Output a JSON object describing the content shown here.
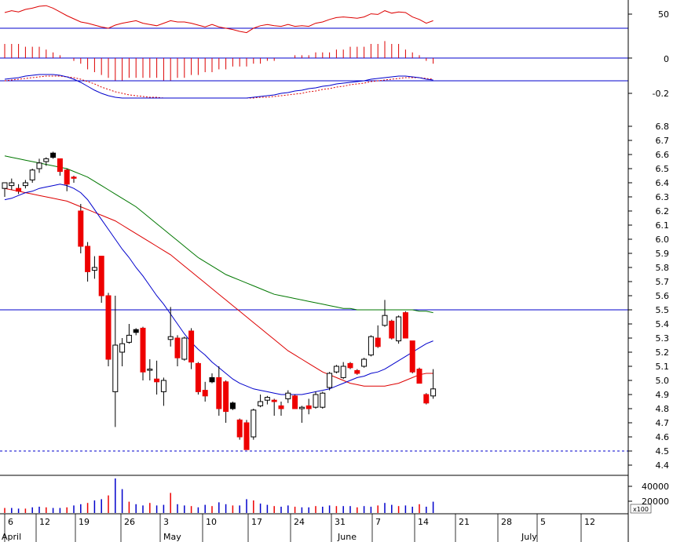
{
  "chart_data": {
    "type": "candlestick",
    "price_axis": {
      "ylim": [
        4.4,
        6.8
      ],
      "tick_labels": [
        "6.8",
        "6.7",
        "6.6",
        "6.5",
        "6.4",
        "6.3",
        "6.2",
        "6.1",
        "6.0",
        "5.9",
        "5.8",
        "5.7",
        "5.6",
        "5.5",
        "5.4",
        "5.3",
        "5.2",
        "5.1",
        "5.0",
        "4.9",
        "4.8",
        "4.7",
        "4.6",
        "4.5",
        "4.4"
      ]
    },
    "rsi_axis": {
      "tick_labels": [
        "50"
      ]
    },
    "macd_hist_axis": {
      "tick_labels": [
        "0"
      ]
    },
    "macd_axis": {
      "tick_labels": [
        "-0.2"
      ]
    },
    "volume_axis": {
      "tick_labels": [
        "40000",
        "20000"
      ],
      "unit_label": "x100"
    },
    "x_axis": {
      "day_labels": [
        "6",
        "12",
        "19",
        "26",
        "3",
        "10",
        "17",
        "24",
        "31",
        "7",
        "14",
        "21",
        "28",
        "5",
        "12"
      ],
      "month_labels": [
        "April",
        "May",
        "June",
        "July"
      ]
    },
    "horizontal_lines": [
      {
        "panel": "price",
        "value": 5.5,
        "style": "solid",
        "color": "#0000cc"
      },
      {
        "panel": "price",
        "value": 4.5,
        "style": "dashed",
        "color": "#0000cc"
      }
    ],
    "candles": [
      {
        "o": 6.36,
        "h": 6.4,
        "l": 6.3,
        "c": 6.4,
        "up": true
      },
      {
        "o": 6.38,
        "h": 6.43,
        "l": 6.35,
        "c": 6.4,
        "up": true
      },
      {
        "o": 6.36,
        "h": 6.39,
        "l": 6.32,
        "c": 6.34,
        "up": false
      },
      {
        "o": 6.38,
        "h": 6.42,
        "l": 6.36,
        "c": 6.4,
        "up": true
      },
      {
        "o": 6.42,
        "h": 6.5,
        "l": 6.4,
        "c": 6.49,
        "up": true
      },
      {
        "o": 6.5,
        "h": 6.57,
        "l": 6.47,
        "c": 6.54,
        "up": true
      },
      {
        "o": 6.55,
        "h": 6.58,
        "l": 6.52,
        "c": 6.57,
        "up": true
      },
      {
        "o": 6.61,
        "h": 6.62,
        "l": 6.57,
        "c": 6.58,
        "up": false
      },
      {
        "o": 6.57,
        "h": 6.57,
        "l": 6.45,
        "c": 6.48,
        "up": false
      },
      {
        "o": 6.49,
        "h": 6.5,
        "l": 6.34,
        "c": 6.39,
        "up": false
      },
      {
        "o": 6.44,
        "h": 6.45,
        "l": 6.4,
        "c": 6.44,
        "up": false
      },
      {
        "o": 6.2,
        "h": 6.25,
        "l": 5.9,
        "c": 5.95,
        "up": false
      },
      {
        "o": 5.95,
        "h": 5.98,
        "l": 5.7,
        "c": 5.77,
        "up": false
      },
      {
        "o": 5.78,
        "h": 5.88,
        "l": 5.72,
        "c": 5.8,
        "up": true
      },
      {
        "o": 5.88,
        "h": 5.88,
        "l": 5.55,
        "c": 5.6,
        "up": false
      },
      {
        "o": 5.6,
        "h": 5.62,
        "l": 5.1,
        "c": 5.15,
        "up": false
      },
      {
        "o": 4.92,
        "h": 5.6,
        "l": 4.67,
        "c": 5.25,
        "up": true
      },
      {
        "o": 5.2,
        "h": 5.3,
        "l": 5.1,
        "c": 5.26,
        "up": true
      },
      {
        "o": 5.27,
        "h": 5.4,
        "l": 5.26,
        "c": 5.32,
        "up": true
      },
      {
        "o": 5.36,
        "h": 5.37,
        "l": 5.32,
        "c": 5.34,
        "up": false
      },
      {
        "o": 5.37,
        "h": 5.38,
        "l": 5.0,
        "c": 5.06,
        "up": false
      },
      {
        "o": 5.08,
        "h": 5.15,
        "l": 5.0,
        "c": 5.08,
        "up": true
      },
      {
        "o": 5.01,
        "h": 5.14,
        "l": 4.9,
        "c": 4.99,
        "up": false
      },
      {
        "o": 4.92,
        "h": 5.02,
        "l": 4.82,
        "c": 5.0,
        "up": true
      },
      {
        "o": 5.29,
        "h": 5.52,
        "l": 5.24,
        "c": 5.31,
        "up": true
      },
      {
        "o": 5.3,
        "h": 5.32,
        "l": 5.1,
        "c": 5.16,
        "up": false
      },
      {
        "o": 5.15,
        "h": 5.31,
        "l": 5.14,
        "c": 5.3,
        "up": true
      },
      {
        "o": 5.35,
        "h": 5.37,
        "l": 5.08,
        "c": 5.13,
        "up": false
      },
      {
        "o": 5.12,
        "h": 5.13,
        "l": 4.9,
        "c": 4.92,
        "up": false
      },
      {
        "o": 4.93,
        "h": 4.99,
        "l": 4.85,
        "c": 4.89,
        "up": false
      },
      {
        "o": 5.02,
        "h": 5.05,
        "l": 4.98,
        "c": 4.99,
        "up": false
      },
      {
        "o": 5.02,
        "h": 5.1,
        "l": 4.75,
        "c": 4.8,
        "up": false
      },
      {
        "o": 4.99,
        "h": 5.0,
        "l": 4.7,
        "c": 4.78,
        "up": false
      },
      {
        "o": 4.84,
        "h": 4.85,
        "l": 4.79,
        "c": 4.8,
        "up": false
      },
      {
        "o": 4.72,
        "h": 4.73,
        "l": 4.58,
        "c": 4.6,
        "up": false
      },
      {
        "o": 4.7,
        "h": 4.72,
        "l": 4.51,
        "c": 4.51,
        "up": false
      },
      {
        "o": 4.6,
        "h": 4.8,
        "l": 4.58,
        "c": 4.79,
        "up": true
      },
      {
        "o": 4.82,
        "h": 4.9,
        "l": 4.81,
        "c": 4.85,
        "up": true
      },
      {
        "o": 4.86,
        "h": 4.89,
        "l": 4.83,
        "c": 4.88,
        "up": true
      },
      {
        "o": 4.86,
        "h": 4.87,
        "l": 4.75,
        "c": 4.85,
        "up": false
      },
      {
        "o": 4.82,
        "h": 4.85,
        "l": 4.75,
        "c": 4.8,
        "up": false
      },
      {
        "o": 4.87,
        "h": 4.93,
        "l": 4.84,
        "c": 4.91,
        "up": true
      },
      {
        "o": 4.89,
        "h": 4.9,
        "l": 4.8,
        "c": 4.8,
        "up": false
      },
      {
        "o": 4.8,
        "h": 4.82,
        "l": 4.7,
        "c": 4.81,
        "up": true
      },
      {
        "o": 4.82,
        "h": 4.87,
        "l": 4.76,
        "c": 4.8,
        "up": false
      },
      {
        "o": 4.81,
        "h": 4.92,
        "l": 4.8,
        "c": 4.9,
        "up": true
      },
      {
        "o": 4.81,
        "h": 4.92,
        "l": 4.8,
        "c": 4.91,
        "up": true
      },
      {
        "o": 4.95,
        "h": 5.06,
        "l": 4.93,
        "c": 5.05,
        "up": true
      },
      {
        "o": 5.06,
        "h": 5.11,
        "l": 5.05,
        "c": 5.1,
        "up": true
      },
      {
        "o": 5.02,
        "h": 5.13,
        "l": 5.01,
        "c": 5.1,
        "up": true
      },
      {
        "o": 5.12,
        "h": 5.13,
        "l": 5.08,
        "c": 5.09,
        "up": false
      },
      {
        "o": 5.07,
        "h": 5.08,
        "l": 5.04,
        "c": 5.05,
        "up": false
      },
      {
        "o": 5.1,
        "h": 5.16,
        "l": 5.09,
        "c": 5.15,
        "up": true
      },
      {
        "o": 5.18,
        "h": 5.32,
        "l": 5.17,
        "c": 5.31,
        "up": true
      },
      {
        "o": 5.3,
        "h": 5.39,
        "l": 5.23,
        "c": 5.24,
        "up": false
      },
      {
        "o": 5.39,
        "h": 5.57,
        "l": 5.38,
        "c": 5.46,
        "up": true
      },
      {
        "o": 5.42,
        "h": 5.43,
        "l": 5.29,
        "c": 5.3,
        "up": false
      },
      {
        "o": 5.28,
        "h": 5.46,
        "l": 5.26,
        "c": 5.45,
        "up": true
      },
      {
        "o": 5.48,
        "h": 5.49,
        "l": 5.3,
        "c": 5.3,
        "up": false
      },
      {
        "o": 5.28,
        "h": 5.28,
        "l": 5.05,
        "c": 5.06,
        "up": false
      },
      {
        "o": 5.08,
        "h": 5.09,
        "l": 4.98,
        "c": 4.98,
        "up": false
      },
      {
        "o": 4.9,
        "h": 4.91,
        "l": 4.83,
        "c": 4.84,
        "up": false
      },
      {
        "o": 4.89,
        "h": 5.08,
        "l": 4.87,
        "c": 4.94,
        "up": true
      }
    ],
    "ma_short_blue": [
      6.28,
      6.29,
      6.31,
      6.33,
      6.34,
      6.36,
      6.37,
      6.38,
      6.39,
      6.38,
      6.36,
      6.33,
      6.28,
      6.21,
      6.14,
      6.07,
      6.0,
      5.93,
      5.87,
      5.8,
      5.74,
      5.67,
      5.6,
      5.54,
      5.47,
      5.4,
      5.33,
      5.27,
      5.22,
      5.18,
      5.13,
      5.09,
      5.05,
      5.01,
      4.98,
      4.96,
      4.94,
      4.93,
      4.92,
      4.91,
      4.9,
      4.9,
      4.9,
      4.9,
      4.91,
      4.92,
      4.93,
      4.94,
      4.96,
      4.98,
      5.0,
      5.02,
      5.03,
      5.05,
      5.06,
      5.08,
      5.11,
      5.14,
      5.17,
      5.2,
      5.23,
      5.26,
      5.28
    ],
    "ma_mid_red": [
      6.36,
      6.35,
      6.34,
      6.33,
      6.32,
      6.31,
      6.3,
      6.29,
      6.28,
      6.27,
      6.25,
      6.23,
      6.21,
      6.19,
      6.17,
      6.15,
      6.13,
      6.1,
      6.07,
      6.04,
      6.01,
      5.98,
      5.95,
      5.92,
      5.89,
      5.85,
      5.81,
      5.77,
      5.73,
      5.69,
      5.65,
      5.61,
      5.57,
      5.53,
      5.49,
      5.45,
      5.41,
      5.37,
      5.33,
      5.29,
      5.25,
      5.21,
      5.18,
      5.15,
      5.12,
      5.09,
      5.06,
      5.04,
      5.02,
      5.0,
      4.98,
      4.97,
      4.96,
      4.96,
      4.96,
      4.96,
      4.97,
      4.98,
      5.0,
      5.02,
      5.04,
      5.05,
      5.05
    ],
    "ma_long_green": [
      6.59,
      6.58,
      6.57,
      6.56,
      6.55,
      6.54,
      6.53,
      6.52,
      6.51,
      6.5,
      6.48,
      6.46,
      6.44,
      6.41,
      6.38,
      6.35,
      6.32,
      6.29,
      6.26,
      6.23,
      6.19,
      6.15,
      6.11,
      6.07,
      6.03,
      5.99,
      5.95,
      5.91,
      5.87,
      5.84,
      5.81,
      5.78,
      5.75,
      5.73,
      5.71,
      5.69,
      5.67,
      5.65,
      5.63,
      5.61,
      5.6,
      5.59,
      5.58,
      5.57,
      5.56,
      5.55,
      5.54,
      5.53,
      5.52,
      5.51,
      5.51,
      5.5,
      5.5,
      5.5,
      5.5,
      5.5,
      5.5,
      5.5,
      5.5,
      5.5,
      5.49,
      5.49,
      5.48
    ],
    "rsi": [
      55,
      58,
      56,
      60,
      62,
      65,
      66,
      62,
      56,
      50,
      45,
      40,
      38,
      35,
      32,
      30,
      35,
      38,
      40,
      42,
      38,
      36,
      34,
      38,
      42,
      40,
      40,
      38,
      35,
      32,
      36,
      32,
      30,
      28,
      25,
      23,
      30,
      34,
      36,
      34,
      33,
      36,
      33,
      34,
      33,
      38,
      40,
      44,
      47,
      48,
      47,
      46,
      48,
      53,
      52,
      58,
      54,
      56,
      55,
      48,
      44,
      38,
      42
    ],
    "macd_hist": [
      0.5,
      0.5,
      0.5,
      0.4,
      0.4,
      0.4,
      0.3,
      0.2,
      0.1,
      0.0,
      -0.1,
      -0.2,
      -0.4,
      -0.5,
      -0.6,
      -0.7,
      -0.8,
      -0.8,
      -0.7,
      -0.7,
      -0.7,
      -0.7,
      -0.7,
      -0.8,
      -0.8,
      -0.7,
      -0.7,
      -0.6,
      -0.6,
      -0.5,
      -0.5,
      -0.4,
      -0.4,
      -0.3,
      -0.3,
      -0.3,
      -0.2,
      -0.2,
      -0.1,
      -0.1,
      0.0,
      0.0,
      0.1,
      0.1,
      0.1,
      0.2,
      0.2,
      0.2,
      0.3,
      0.3,
      0.4,
      0.4,
      0.4,
      0.5,
      0.5,
      0.6,
      0.5,
      0.5,
      0.3,
      0.2,
      0.1,
      -0.1,
      -0.2
    ],
    "macd_line": [
      0.02,
      0.03,
      0.04,
      0.06,
      0.07,
      0.08,
      0.08,
      0.08,
      0.07,
      0.05,
      0.02,
      -0.02,
      -0.07,
      -0.12,
      -0.16,
      -0.19,
      -0.21,
      -0.22,
      -0.22,
      -0.22,
      -0.22,
      -0.22,
      -0.22,
      -0.22,
      -0.22,
      -0.22,
      -0.22,
      -0.22,
      -0.22,
      -0.22,
      -0.22,
      -0.22,
      -0.22,
      -0.22,
      -0.22,
      -0.22,
      -0.21,
      -0.2,
      -0.19,
      -0.18,
      -0.16,
      -0.15,
      -0.13,
      -0.12,
      -0.1,
      -0.09,
      -0.07,
      -0.06,
      -0.04,
      -0.03,
      -0.02,
      -0.01,
      0.0,
      0.02,
      0.03,
      0.04,
      0.05,
      0.06,
      0.06,
      0.05,
      0.04,
      0.02,
      0.01
    ],
    "macd_signal": [
      0.0,
      0.01,
      0.02,
      0.03,
      0.04,
      0.05,
      0.06,
      0.06,
      0.06,
      0.05,
      0.04,
      0.02,
      -0.01,
      -0.04,
      -0.08,
      -0.11,
      -0.14,
      -0.16,
      -0.18,
      -0.19,
      -0.2,
      -0.21,
      -0.21,
      -0.22,
      -0.22,
      -0.22,
      -0.22,
      -0.22,
      -0.22,
      -0.22,
      -0.22,
      -0.22,
      -0.22,
      -0.22,
      -0.22,
      -0.22,
      -0.22,
      -0.21,
      -0.21,
      -0.2,
      -0.19,
      -0.18,
      -0.17,
      -0.16,
      -0.14,
      -0.13,
      -0.11,
      -0.1,
      -0.08,
      -0.07,
      -0.05,
      -0.04,
      -0.03,
      -0.01,
      0.0,
      0.01,
      0.02,
      0.03,
      0.04,
      0.04,
      0.04,
      0.03,
      0.02
    ],
    "volume": [
      8000,
      8000,
      7000,
      7000,
      9000,
      10000,
      9000,
      8000,
      8000,
      9000,
      12000,
      14000,
      16000,
      20000,
      22000,
      28000,
      55000,
      38000,
      18000,
      14000,
      12000,
      16000,
      12000,
      13000,
      32000,
      14000,
      12000,
      11000,
      9000,
      13000,
      11000,
      17000,
      14000,
      12000,
      12000,
      22000,
      20000,
      15000,
      13000,
      11000,
      10000,
      12000,
      10000,
      9000,
      9000,
      11000,
      10000,
      12000,
      11000,
      11000,
      11000,
      9000,
      11000,
      10000,
      12000,
      16000,
      13000,
      11000,
      12000,
      10000,
      14000,
      10000,
      18000
    ]
  }
}
